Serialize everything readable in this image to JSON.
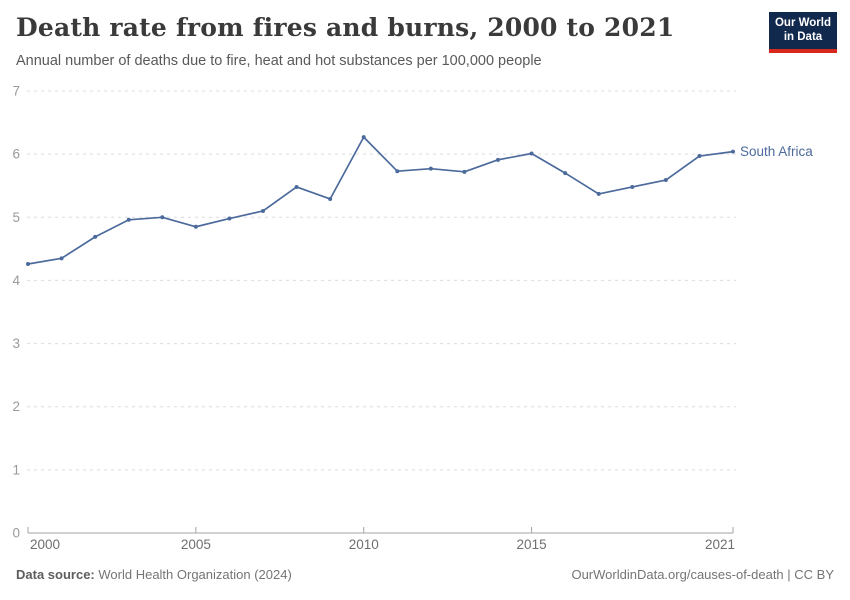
{
  "header": {
    "title": "Death rate from fires and burns, 2000 to 2021",
    "subtitle": "Annual number of deaths due to fire, heat and hot substances per 100,000 people"
  },
  "logo": {
    "line1": "Our World",
    "line2": "in Data",
    "bg_color": "#12294E",
    "accent_color": "#D7281E"
  },
  "chart_data": {
    "type": "line",
    "title": "Death rate from fires and burns, 2000 to 2021",
    "x": [
      2000,
      2001,
      2002,
      2003,
      2004,
      2005,
      2006,
      2007,
      2008,
      2009,
      2010,
      2011,
      2012,
      2013,
      2014,
      2015,
      2016,
      2017,
      2018,
      2019,
      2020,
      2021
    ],
    "series": [
      {
        "name": "South Africa",
        "color": "#4C6A9C",
        "values": [
          4.26,
          4.35,
          4.69,
          4.96,
          5.0,
          4.85,
          4.98,
          5.1,
          5.48,
          5.29,
          6.27,
          5.73,
          5.77,
          5.72,
          5.91,
          6.01,
          5.7,
          5.37,
          5.48,
          5.59,
          5.97,
          6.04
        ]
      }
    ],
    "xlabel": "",
    "ylabel": "",
    "ylim": [
      0,
      7
    ],
    "yticks": [
      0,
      1,
      2,
      3,
      4,
      5,
      6,
      7
    ],
    "xticks": [
      2000,
      2005,
      2010,
      2015,
      2021
    ],
    "grid": "horizontal-dashed",
    "legend": "end-of-line-label"
  },
  "footer": {
    "source_label": "Data source:",
    "source_value": "World Health Organization (2024)",
    "credit": "OurWorldinData.org/causes-of-death | CC BY"
  }
}
